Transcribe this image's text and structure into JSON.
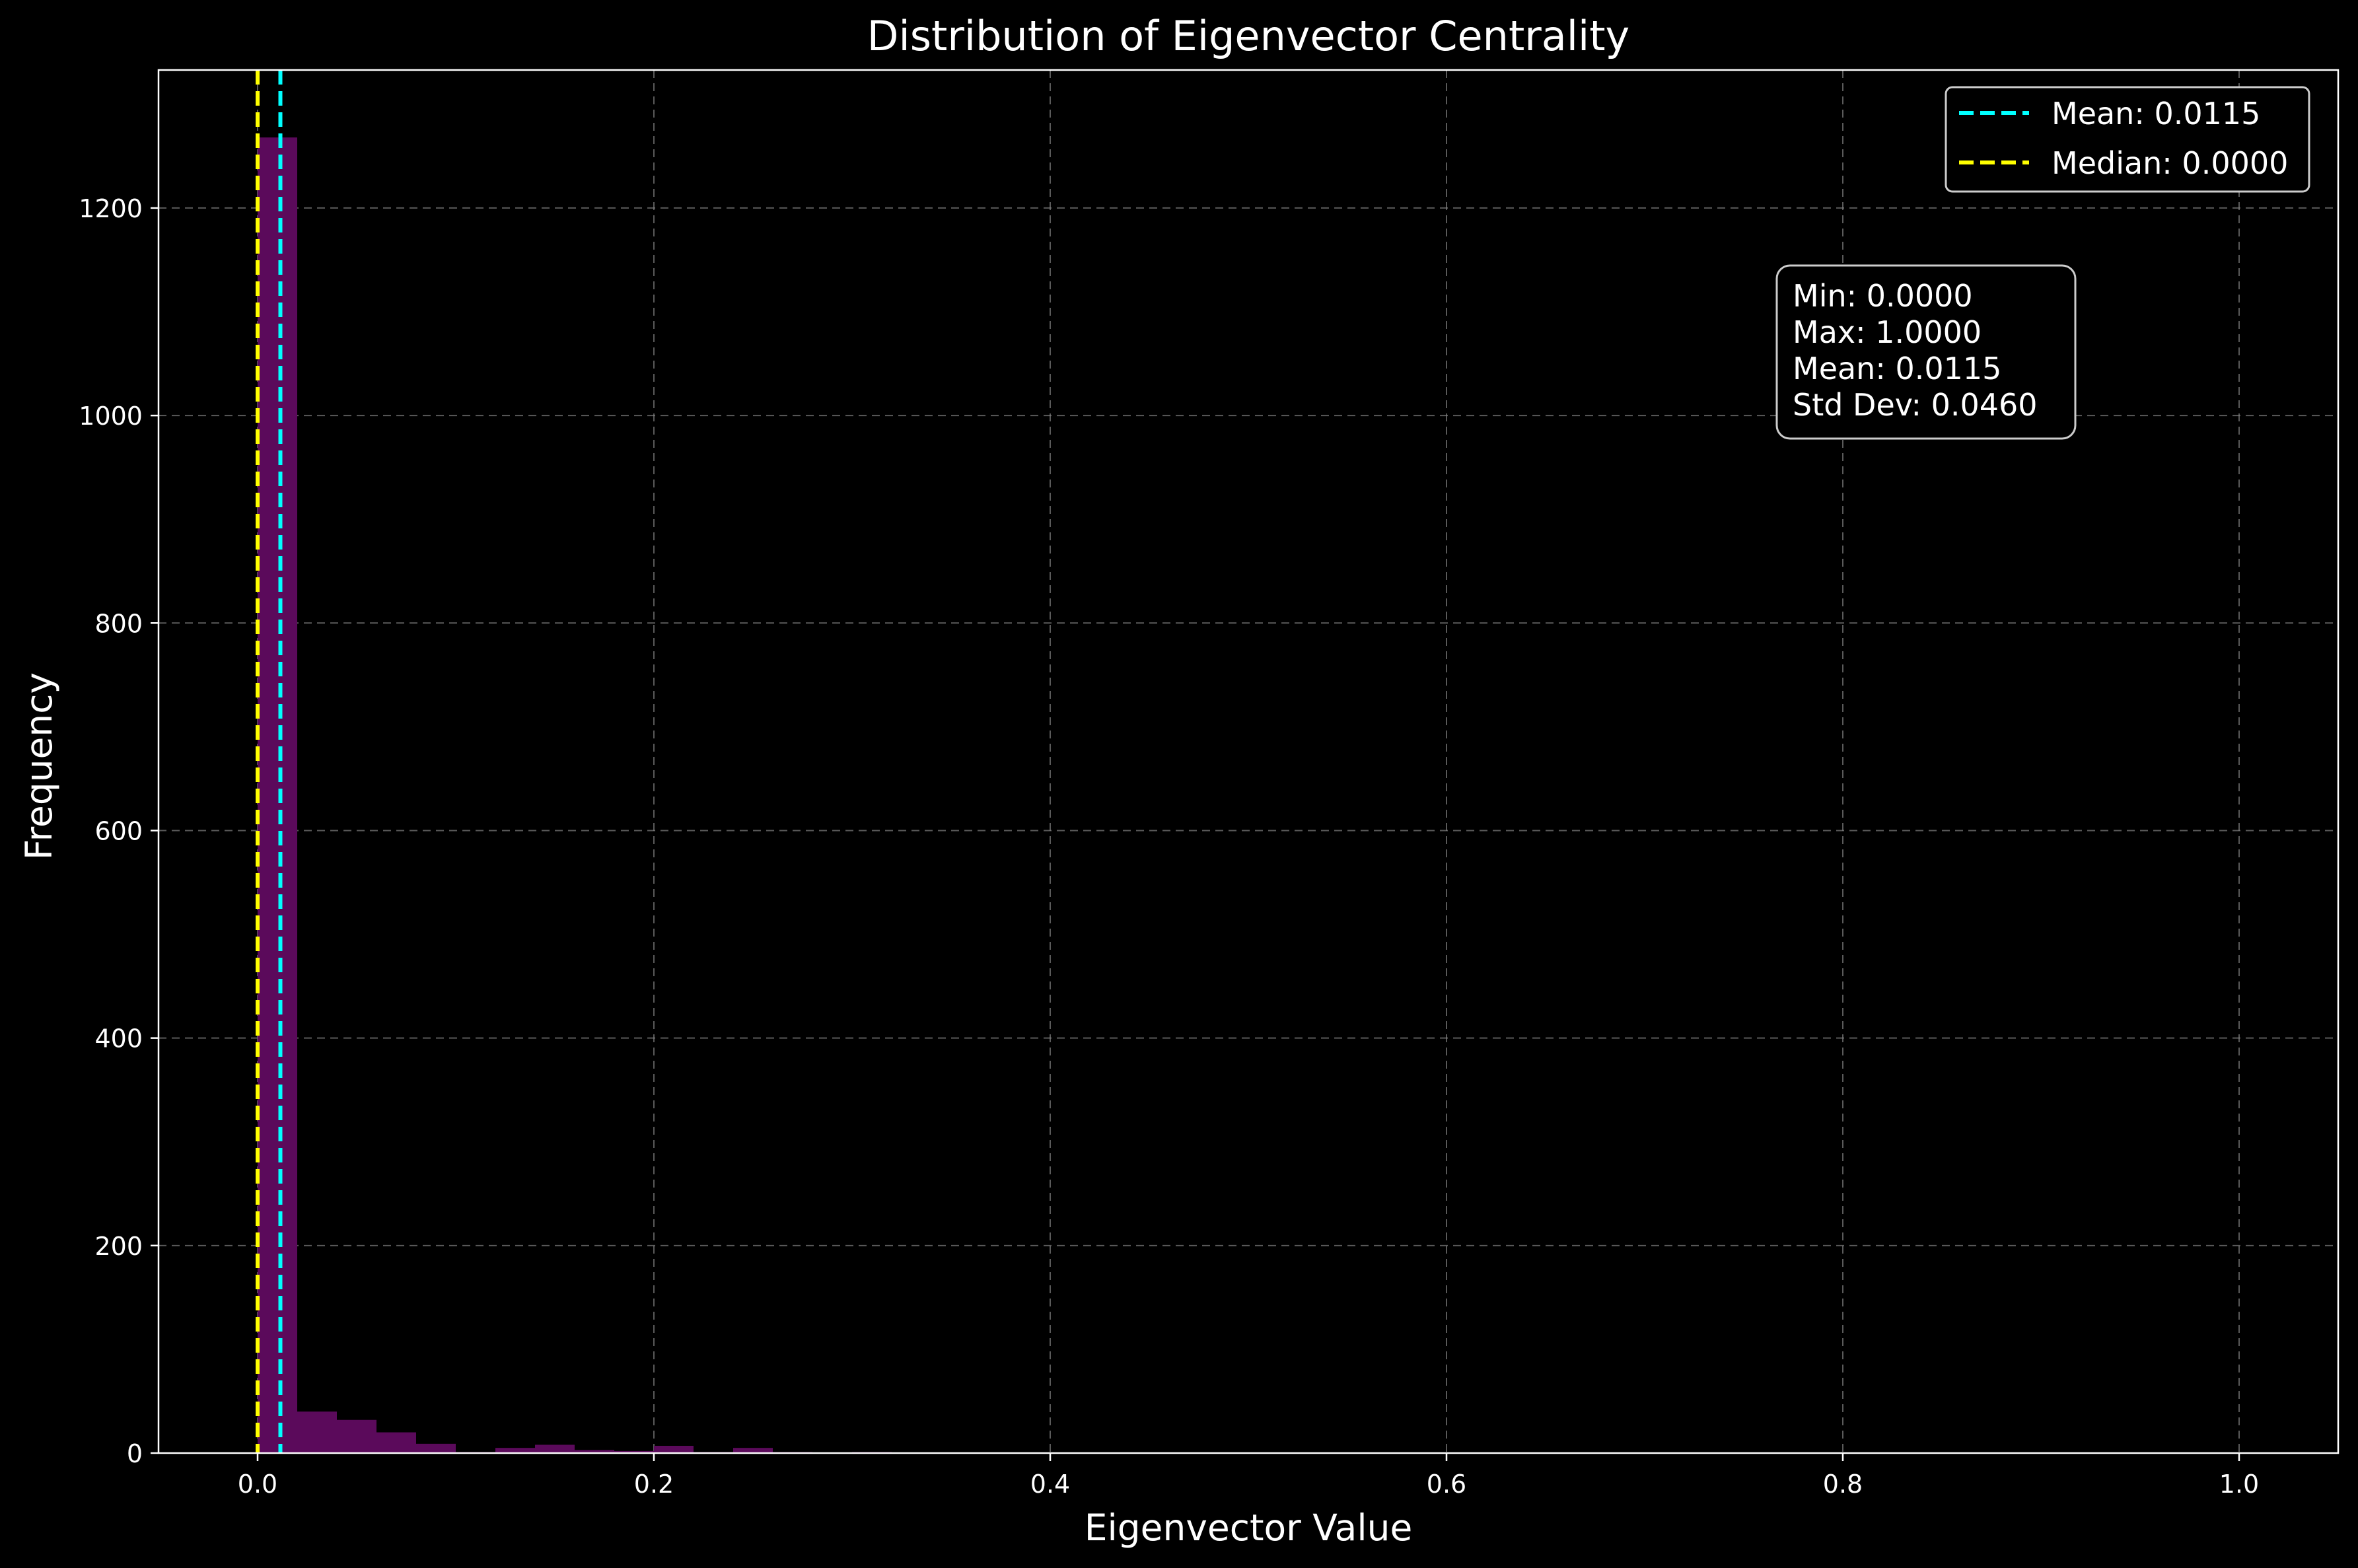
{
  "chart_data": {
    "type": "bar",
    "title": "Distribution of Eigenvector Centrality",
    "xlabel": "Eigenvector Value",
    "ylabel": "Frequency",
    "xlim": [
      -0.05,
      1.05
    ],
    "ylim": [
      0,
      1333
    ],
    "xticks": [
      0.0,
      0.2,
      0.4,
      0.6,
      0.8,
      1.0
    ],
    "xtick_labels": [
      "0.0",
      "0.2",
      "0.4",
      "0.6",
      "0.8",
      "1.0"
    ],
    "yticks": [
      0,
      200,
      400,
      600,
      800,
      1000,
      1200
    ],
    "ytick_labels": [
      "0",
      "200",
      "400",
      "600",
      "800",
      "1000",
      "1200"
    ],
    "grid": true,
    "legend_position": "top-right",
    "bin_width": 0.02,
    "bins": [
      {
        "x0": 0.0,
        "count": 1268
      },
      {
        "x0": 0.02,
        "count": 40
      },
      {
        "x0": 0.04,
        "count": 32
      },
      {
        "x0": 0.06,
        "count": 20
      },
      {
        "x0": 0.08,
        "count": 9
      },
      {
        "x0": 0.1,
        "count": 1
      },
      {
        "x0": 0.12,
        "count": 5
      },
      {
        "x0": 0.14,
        "count": 8
      },
      {
        "x0": 0.16,
        "count": 3
      },
      {
        "x0": 0.18,
        "count": 2
      },
      {
        "x0": 0.2,
        "count": 7
      },
      {
        "x0": 0.22,
        "count": 1
      },
      {
        "x0": 0.24,
        "count": 5
      },
      {
        "x0": 0.26,
        "count": 1
      },
      {
        "x0": 0.28,
        "count": 0
      },
      {
        "x0": 0.3,
        "count": 1
      },
      {
        "x0": 0.32,
        "count": 0
      }
    ],
    "reference_lines": [
      {
        "label": "Mean: 0.0115",
        "x": 0.0115,
        "color": "#00ffff"
      },
      {
        "label": "Median: 0.0000",
        "x": 0.0,
        "color": "#ffff00"
      }
    ],
    "stats_box": [
      "Min: 0.0000",
      "Max: 1.0000",
      "Mean: 0.0115",
      "Std Dev: 0.0460"
    ],
    "colors": {
      "background": "#000000",
      "bar": "#5b0a5b",
      "axis": "#ffffff",
      "grid": "#808080"
    }
  }
}
